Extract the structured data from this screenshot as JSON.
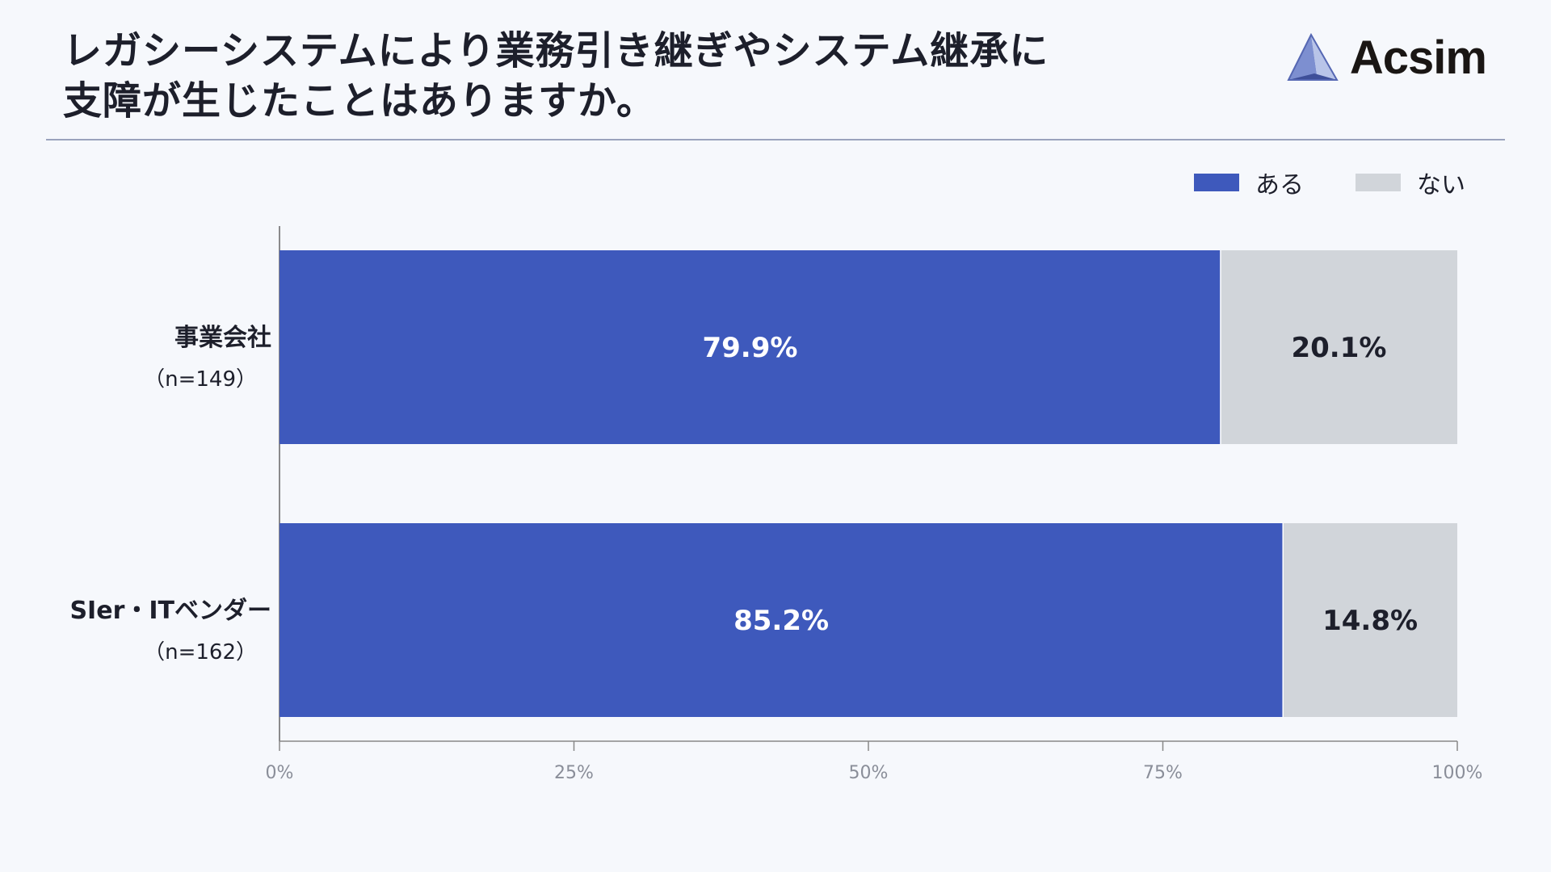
{
  "title": {
    "line1": "レガシーシステムにより業務引き継ぎやシステム継承に",
    "line2": "支障が生じたことはありますか。"
  },
  "logo": {
    "text": "Acsim",
    "icon": "triangle-prism-logo-icon"
  },
  "legend": [
    {
      "label": "ある",
      "color": "#3e59bc"
    },
    {
      "label": "ない",
      "color": "#d1d5da"
    }
  ],
  "chart_data": {
    "type": "bar",
    "orientation": "horizontal",
    "stacked": true,
    "categories": [
      {
        "name": "事業会社",
        "n": "（n=149）"
      },
      {
        "name": "SIer・ITベンダー",
        "n": "（n=162）"
      }
    ],
    "series": [
      {
        "name": "ある",
        "values": [
          79.9,
          85.2
        ],
        "labels": [
          "79.9%",
          "85.2%"
        ],
        "color": "#3e59bc",
        "label_color": "#ffffff"
      },
      {
        "name": "ない",
        "values": [
          20.1,
          14.8
        ],
        "labels": [
          "20.1%",
          "14.8%"
        ],
        "color": "#d1d5da",
        "label_color": "#1d1f2b"
      }
    ],
    "xlim": [
      0,
      100
    ],
    "xticks": [
      0,
      25,
      50,
      75,
      100
    ],
    "xtick_labels": [
      "0%",
      "25%",
      "50%",
      "75%",
      "100%"
    ],
    "grid": false,
    "legend_position": "top-right"
  }
}
